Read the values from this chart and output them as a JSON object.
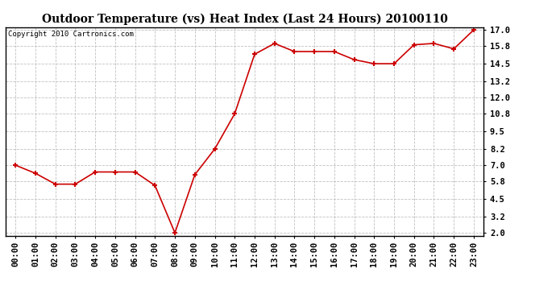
{
  "title": "Outdoor Temperature (vs) Heat Index (Last 24 Hours) 20100110",
  "copyright_text": "Copyright 2010 Cartronics.com",
  "x_labels": [
    "00:00",
    "01:00",
    "02:00",
    "03:00",
    "04:00",
    "05:00",
    "06:00",
    "07:00",
    "08:00",
    "09:00",
    "10:00",
    "11:00",
    "12:00",
    "13:00",
    "14:00",
    "15:00",
    "16:00",
    "17:00",
    "18:00",
    "19:00",
    "20:00",
    "21:00",
    "22:00",
    "23:00"
  ],
  "y_values": [
    7.0,
    6.4,
    5.6,
    5.6,
    6.5,
    6.5,
    6.5,
    5.5,
    2.0,
    6.3,
    8.2,
    10.8,
    15.2,
    16.0,
    15.4,
    15.4,
    15.4,
    14.8,
    14.5,
    14.5,
    15.9,
    16.0,
    15.6,
    17.0
  ],
  "y_ticks": [
    2.0,
    3.2,
    4.5,
    5.8,
    7.0,
    8.2,
    9.5,
    10.8,
    12.0,
    13.2,
    14.5,
    15.8,
    17.0
  ],
  "ylim": [
    1.8,
    17.2
  ],
  "xlim": [
    -0.5,
    23.5
  ],
  "line_color": "#cc0000",
  "marker_color": "#cc0000",
  "background_color": "#ffffff",
  "grid_color": "#c0c0c0",
  "title_fontsize": 10,
  "copyright_fontsize": 6.5,
  "tick_fontsize": 7.5
}
